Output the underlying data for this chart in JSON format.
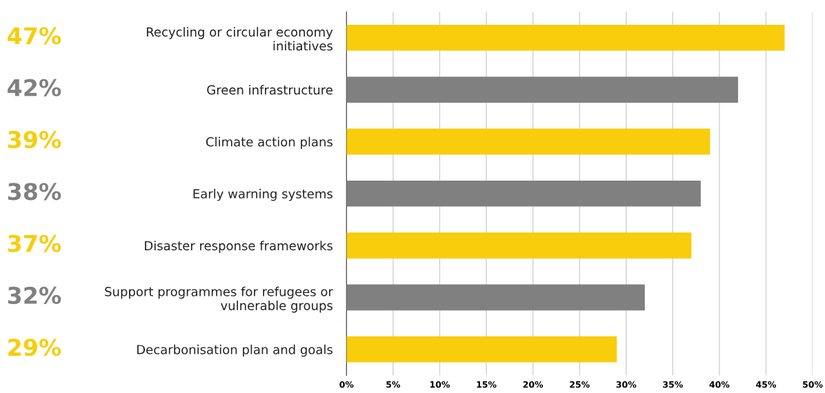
{
  "chart_data": {
    "type": "bar",
    "orientation": "horizontal",
    "categories": [
      "Recycling or circular economy\ninitiatives",
      "Green infrastructure",
      "Climate action plans",
      "Early warning systems",
      "Disaster response frameworks",
      "Support programmes for refugees or\nvulnerable groups",
      "Decarbonisation plan and goals"
    ],
    "values": [
      47,
      42,
      39,
      38,
      37,
      32,
      29
    ],
    "colors": [
      "#f7cd0c",
      "#808080",
      "#f7cd0c",
      "#808080",
      "#f7cd0c",
      "#808080",
      "#f7cd0c"
    ],
    "value_labels": [
      "47%",
      "42%",
      "39%",
      "38%",
      "37%",
      "32%",
      "29%"
    ],
    "xlim": [
      0,
      50
    ],
    "xticks": [
      {
        "value": 0,
        "label": "0%"
      },
      {
        "value": 5,
        "label": "5%"
      },
      {
        "value": 10,
        "label": "10%"
      },
      {
        "value": 15,
        "label": "15%"
      },
      {
        "value": 20,
        "label": "20%"
      },
      {
        "value": 25,
        "label": "25%"
      },
      {
        "value": 30,
        "label": "30%"
      },
      {
        "value": 35,
        "label": "35%"
      },
      {
        "value": 40,
        "label": "40%"
      },
      {
        "value": 45,
        "label": "45%"
      },
      {
        "value": 50,
        "label": "50%"
      }
    ],
    "grid": "x"
  }
}
